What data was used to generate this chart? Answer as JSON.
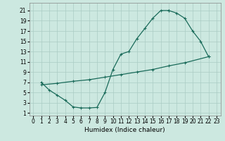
{
  "bg_color": "#cce8e0",
  "grid_color": "#aaccc4",
  "line_color": "#1a6b5a",
  "line_width": 0.9,
  "marker": "+",
  "marker_size": 3.5,
  "marker_ew": 0.8,
  "xlabel": "Humidex (Indice chaleur)",
  "xlim": [
    -0.5,
    23.5
  ],
  "ylim": [
    0.5,
    22.5
  ],
  "xticks": [
    0,
    1,
    2,
    3,
    4,
    5,
    6,
    7,
    8,
    9,
    10,
    11,
    12,
    13,
    14,
    15,
    16,
    17,
    18,
    19,
    20,
    21,
    22,
    23
  ],
  "yticks": [
    1,
    3,
    5,
    7,
    9,
    11,
    13,
    15,
    17,
    19,
    21
  ],
  "curve1_x": [
    1,
    2,
    3,
    4,
    5,
    6,
    7,
    8,
    9,
    10,
    11,
    12,
    13,
    14,
    15,
    16,
    17
  ],
  "curve1_y": [
    7.0,
    5.5,
    4.5,
    3.5,
    2.2,
    2.0,
    2.0,
    2.1,
    5.0,
    9.5,
    12.5,
    13.0,
    15.5,
    17.5,
    19.5,
    21.0,
    21.0
  ],
  "curve2_x": [
    17,
    18,
    19,
    20,
    21,
    22
  ],
  "curve2_y": [
    21.0,
    20.5,
    19.5,
    17.0,
    15.0,
    12.0
  ],
  "curve3_x": [
    1,
    3,
    5,
    7,
    9,
    11,
    13,
    15,
    17,
    19,
    22
  ],
  "curve3_y": [
    6.5,
    6.8,
    7.2,
    7.5,
    8.0,
    8.5,
    9.0,
    9.5,
    10.2,
    10.8,
    12.0
  ],
  "tick_fontsize": 5.5,
  "label_fontsize": 6.5
}
